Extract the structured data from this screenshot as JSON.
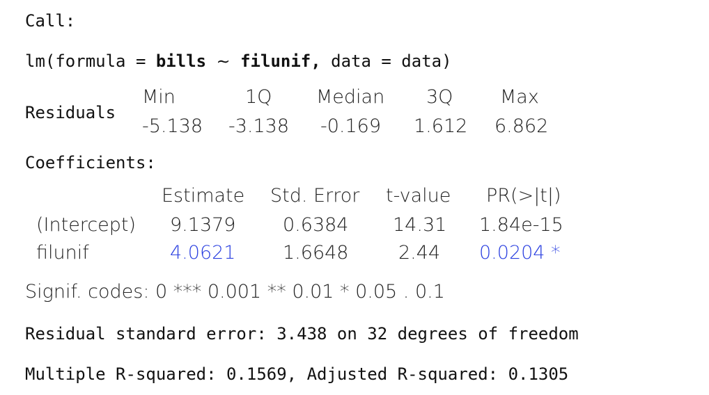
{
  "call_label": "Call:",
  "formula": {
    "prefix": "lm(formula = ",
    "response": "bills",
    "tilde": "∼",
    "predictor": "filunif,",
    "suffix": "data = data)"
  },
  "residuals": {
    "label": "Residuals",
    "headers": [
      "Min",
      "1Q",
      "Median",
      "3Q",
      "Max"
    ],
    "values": [
      "-5.138",
      "-3.138",
      "-0.169",
      "1.612",
      "6.862"
    ]
  },
  "coefficients": {
    "label": "Coefficients:",
    "headers": [
      "Estimate",
      "Std. Error",
      "t-value",
      "PR(>|t|)"
    ],
    "rows": [
      {
        "term": "(Intercept)",
        "estimate": "9.1379",
        "std_error": "0.6384",
        "t_value": "14.31",
        "p_value": "1.84e-15",
        "highlight": false
      },
      {
        "term": "filunif",
        "estimate": "4.0621",
        "std_error": "1.6648",
        "t_value": "2.44",
        "p_value": "0.0204 *",
        "highlight": true
      }
    ],
    "highlight_color": "#2a3fe0"
  },
  "signif_codes": "Signif. codes: 0 *** 0.001 ** 0.01 * 0.05 . 0.1",
  "residual_standard_error": "Residual standard error: 3.438 on 32 degrees of freedom",
  "r_squared": "Multiple R-squared: 0.1569, Adjusted R-squared: 0.1305"
}
